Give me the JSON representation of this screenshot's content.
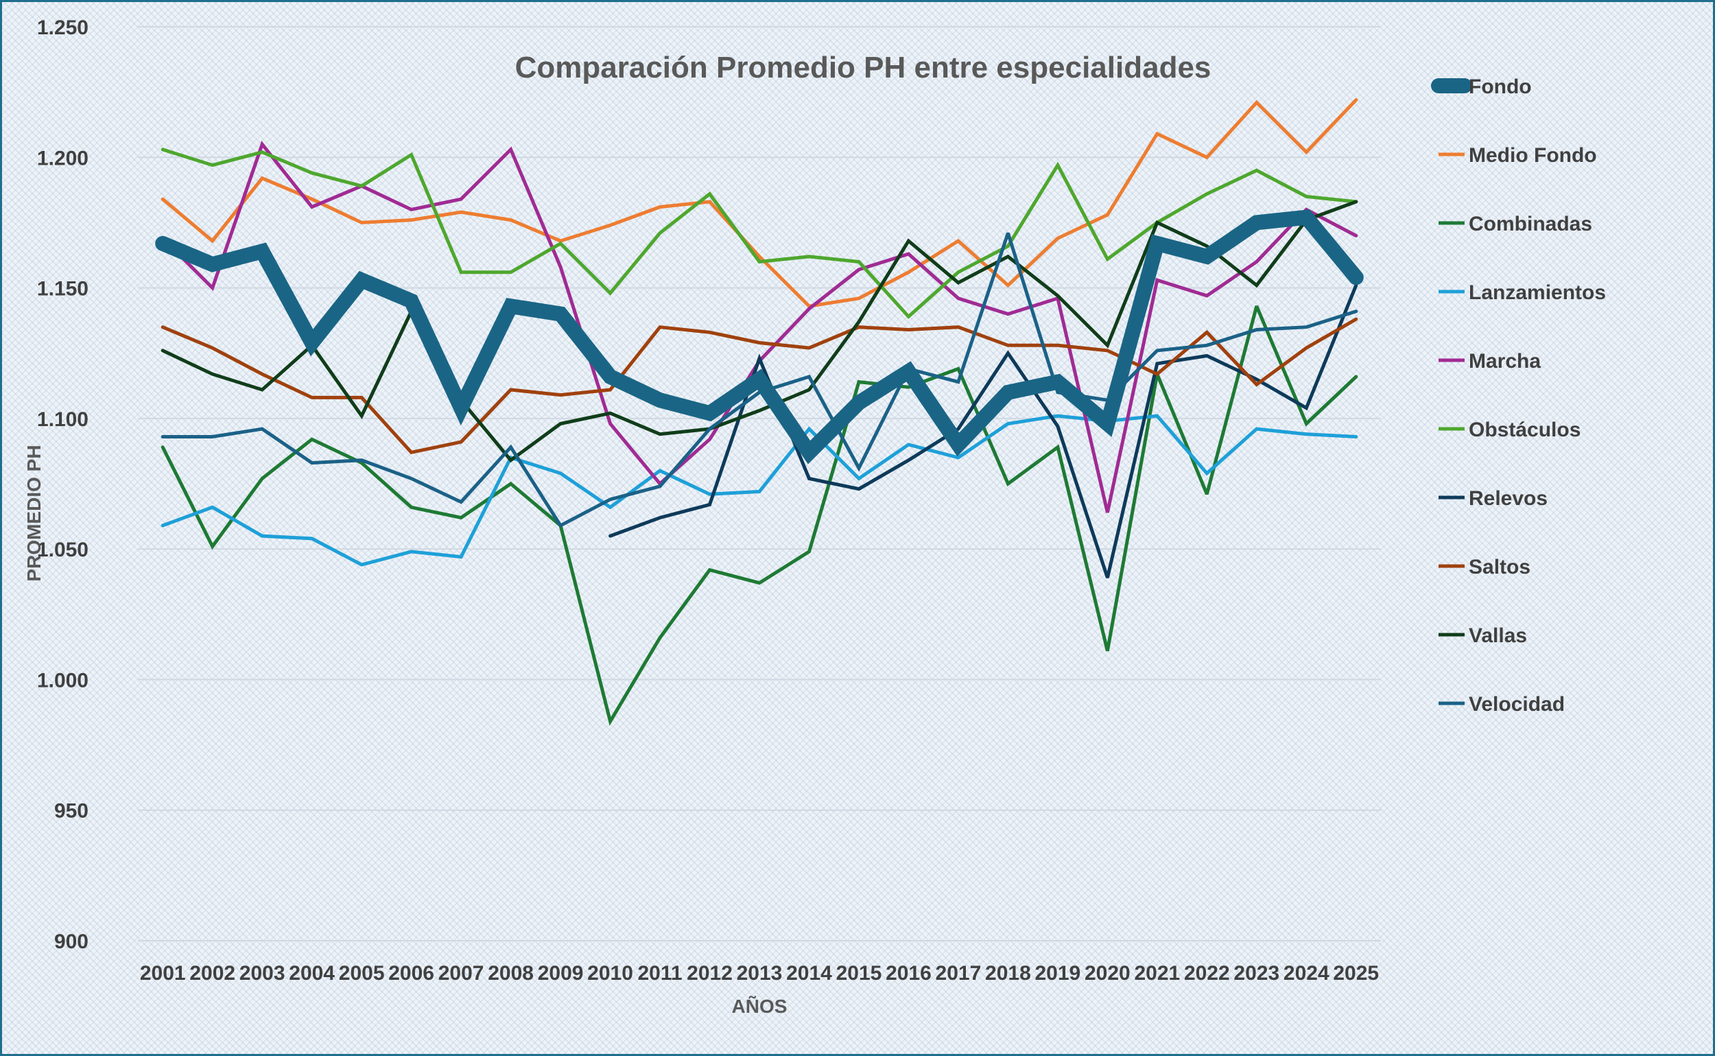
{
  "chart_data": {
    "type": "line",
    "title": "Comparación Promedio PH entre especialidades",
    "xlabel": "AÑOS",
    "ylabel": "PROMEDIO PH",
    "ylim": [
      900,
      1250
    ],
    "yticks": [
      900,
      950,
      1000,
      1050,
      1100,
      1150,
      1200,
      1250
    ],
    "ytick_labels": [
      "900",
      "950",
      "1.000",
      "1.050",
      "1.100",
      "1.150",
      "1.200",
      "1.250"
    ],
    "categories": [
      "2001",
      "2002",
      "2003",
      "2004",
      "2005",
      "2006",
      "2007",
      "2008",
      "2009",
      "2010",
      "2011",
      "2012",
      "2013",
      "2014",
      "2015",
      "2016",
      "2017",
      "2018",
      "2019",
      "2020",
      "2021",
      "2022",
      "2023",
      "2024",
      "2025"
    ],
    "grid": true,
    "legend_position": "right",
    "series": [
      {
        "name": "Fondo",
        "color": "#1a6585",
        "emphasis": true,
        "values": [
          1167,
          1159,
          1164,
          1129,
          1153,
          1145,
          1104,
          1143,
          1140,
          1116,
          1107,
          1102,
          1115,
          1087,
          1106,
          1118,
          1090,
          1110,
          1114,
          1098,
          1167,
          1162,
          1175,
          1177,
          1154
        ]
      },
      {
        "name": "Medio Fondo",
        "color": "#ed7d31",
        "values": [
          1184,
          1168,
          1192,
          1184,
          1175,
          1176,
          1179,
          1176,
          1168,
          1174,
          1181,
          1183,
          1162,
          1143,
          1146,
          1156,
          1168,
          1151,
          1169,
          1178,
          1209,
          1200,
          1221,
          1202,
          1222
        ]
      },
      {
        "name": "Combinadas",
        "color": "#1e7a34",
        "values": [
          1089,
          1051,
          1077,
          1092,
          1083,
          1066,
          1062,
          1075,
          1059,
          984,
          1016,
          1042,
          1037,
          1049,
          1114,
          1112,
          1119,
          1075,
          1089,
          1011,
          1117,
          1071,
          1143,
          1098,
          1116
        ]
      },
      {
        "name": "Lanzamientos",
        "color": "#1ea0d8",
        "values": [
          1059,
          1066,
          1055,
          1054,
          1044,
          1049,
          1047,
          1085,
          1079,
          1066,
          1080,
          1071,
          1072,
          1096,
          1077,
          1090,
          1085,
          1098,
          1101,
          1099,
          1101,
          1079,
          1096,
          1094,
          1093
        ]
      },
      {
        "name": "Marcha",
        "color": "#a02b93",
        "values": [
          1169,
          1150,
          1205,
          1181,
          1189,
          1180,
          1184,
          1203,
          1158,
          1098,
          1075,
          1092,
          1122,
          1142,
          1157,
          1163,
          1146,
          1140,
          1146,
          1064,
          1153,
          1147,
          1160,
          1180,
          1170
        ]
      },
      {
        "name": "Obstáculos",
        "color": "#4ea72e",
        "values": [
          1203,
          1197,
          1202,
          1194,
          1189,
          1201,
          1156,
          1156,
          1167,
          1148,
          1171,
          1186,
          1160,
          1162,
          1160,
          1139,
          1156,
          1166,
          1197,
          1161,
          1175,
          1186,
          1195,
          1185,
          1183
        ]
      },
      {
        "name": "Relevos",
        "color": "#0e3a5a",
        "values": [
          null,
          null,
          null,
          null,
          null,
          null,
          null,
          null,
          null,
          1055,
          1062,
          1067,
          1123,
          1077,
          1073,
          1084,
          1096,
          1125,
          1097,
          1039,
          1121,
          1124,
          1115,
          1104,
          1151
        ]
      },
      {
        "name": "Saltos",
        "color": "#a0410e",
        "values": [
          1135,
          1127,
          1117,
          1108,
          1108,
          1087,
          1091,
          1111,
          1109,
          1111,
          1135,
          1133,
          1129,
          1127,
          1135,
          1134,
          1135,
          1128,
          1128,
          1126,
          1117,
          1133,
          1113,
          1127,
          1138
        ]
      },
      {
        "name": "Vallas",
        "color": "#103d1a",
        "values": [
          1126,
          1117,
          1111,
          1128,
          1101,
          1141,
          1107,
          1084,
          1098,
          1102,
          1094,
          1096,
          1103,
          1111,
          1137,
          1168,
          1152,
          1162,
          1147,
          1128,
          1175,
          1166,
          1151,
          1176,
          1183
        ]
      },
      {
        "name": "Velocidad",
        "color": "#1b6187",
        "values": [
          1093,
          1093,
          1096,
          1083,
          1084,
          1077,
          1068,
          1089,
          1059,
          1069,
          1074,
          1096,
          1110,
          1116,
          1081,
          1119,
          1114,
          1171,
          1110,
          1107,
          1126,
          1128,
          1134,
          1135,
          1141
        ]
      }
    ]
  }
}
